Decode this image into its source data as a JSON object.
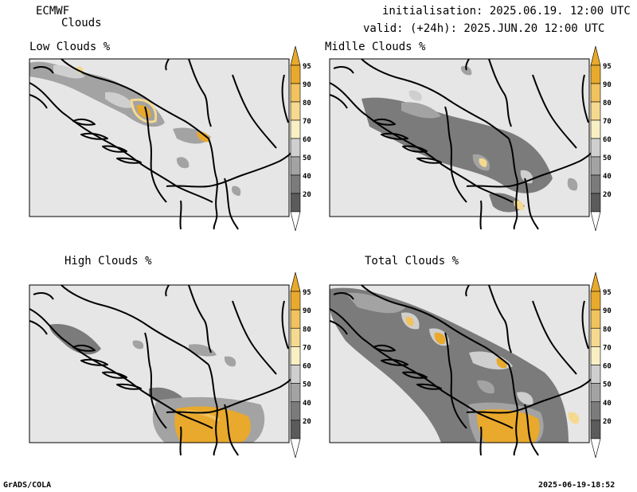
{
  "header": {
    "model": "ECMWF",
    "product": "Clouds",
    "init": "initialisation: 2025.06.19. 12:00 UTC",
    "valid": "valid: (+24h): 2025.JUN.20 12:00 UTC"
  },
  "panels": [
    {
      "title": "Low Clouds %"
    },
    {
      "title": "Midlle Clouds %"
    },
    {
      "title": "High Clouds %"
    },
    {
      "title": "Total Clouds %"
    }
  ],
  "colorbar": {
    "levels": [
      "95",
      "90",
      "80",
      "70",
      "60",
      "50",
      "40",
      "20"
    ],
    "colors": {
      "c95": "#e8a92c",
      "c90": "#f1c25e",
      "c80": "#f5d98f",
      "c70": "#f8f0c4",
      "c60": "#cfcfcf",
      "c50": "#a3a3a3",
      "c40": "#7b7b7b",
      "c20": "#5b5b5b",
      "land": "#e6e6e6"
    }
  },
  "footer": {
    "left": "GrADS/COLA",
    "right": "2025-06-19-18:52"
  }
}
